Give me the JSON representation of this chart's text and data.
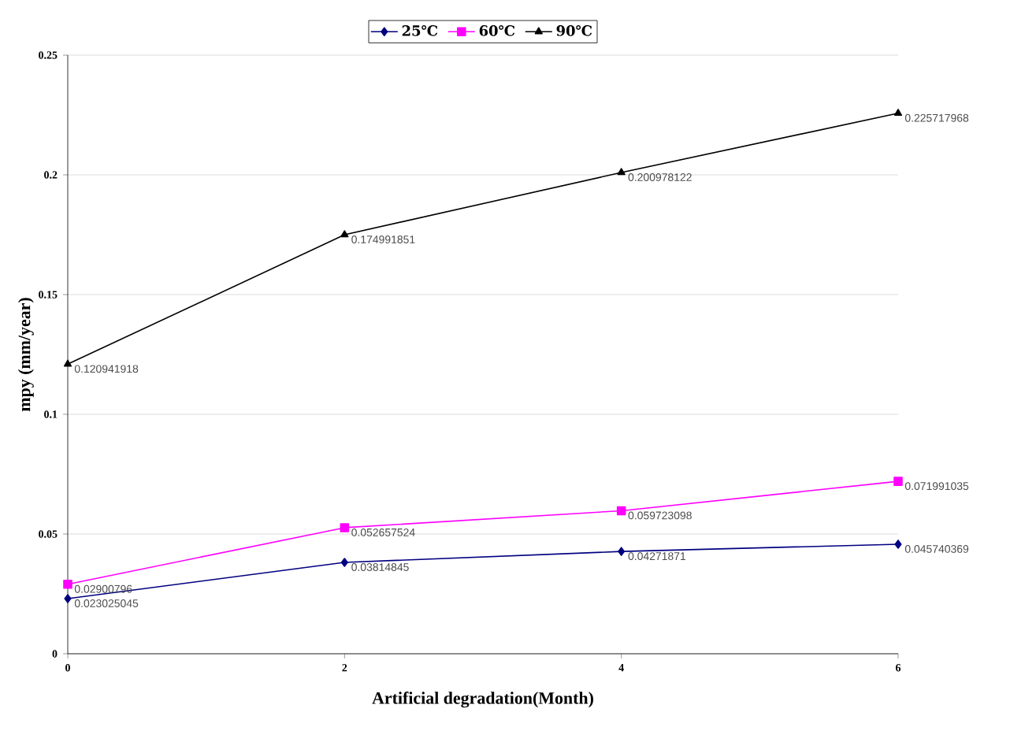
{
  "chart_data": {
    "type": "line",
    "xlabel": "Artificial degradation(Month)",
    "ylabel": "mpy (mm/year)",
    "x": [
      0,
      2,
      4,
      6
    ],
    "xlim": [
      0,
      6
    ],
    "xticks": [
      0,
      2,
      4,
      6
    ],
    "ylim": [
      0,
      0.25
    ],
    "yticks": [
      0,
      0.05,
      0.1,
      0.15,
      0.2,
      0.25
    ],
    "grid": "y",
    "legend": "top",
    "series": [
      {
        "name": "25℃",
        "color": "#000080",
        "marker": "diamond",
        "values": [
          0.023025045,
          0.03814845,
          0.04271871,
          0.045740369
        ],
        "value_labels": [
          "0.023025045",
          "0.03814845",
          "0.04271871",
          "0.045740369"
        ]
      },
      {
        "name": "60℃",
        "color": "#ff00ff",
        "marker": "square",
        "values": [
          0.02900796,
          0.052657524,
          0.059723098,
          0.071991035
        ],
        "value_labels": [
          "0.02900796",
          "0.052657524",
          "0.059723098",
          "0.071991035"
        ]
      },
      {
        "name": "90℃",
        "color": "#000000",
        "marker": "triangle",
        "values": [
          0.120941918,
          0.174991851,
          0.200978122,
          0.225717968
        ],
        "value_labels": [
          "0.120941918",
          "0.174991851",
          "0.200978122",
          "0.225717968"
        ]
      }
    ]
  }
}
